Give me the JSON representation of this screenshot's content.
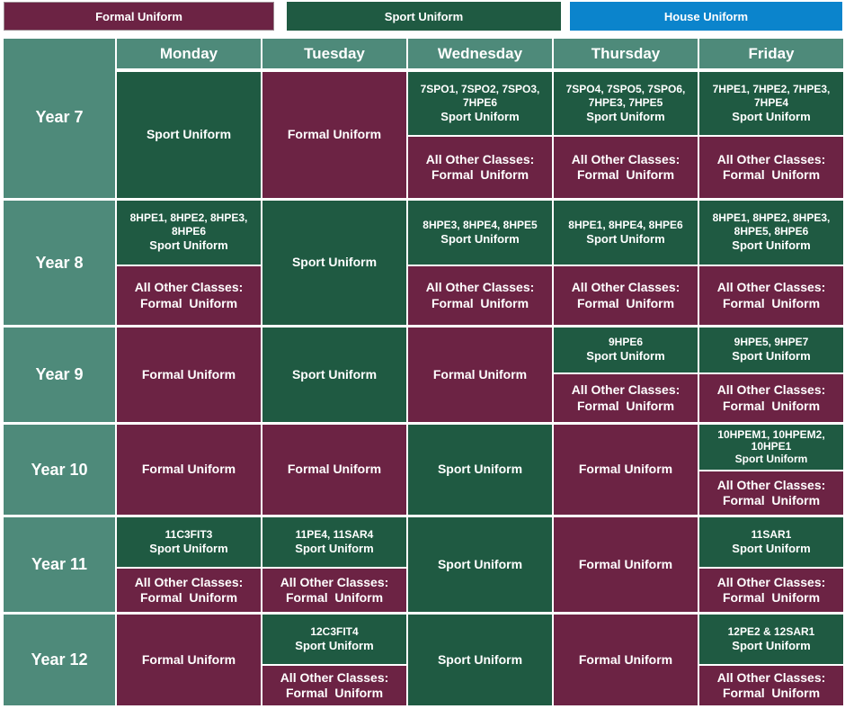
{
  "legend": {
    "formal": "Formal Uniform",
    "sport": "Sport Uniform",
    "house": "House Uniform"
  },
  "days": [
    "Monday",
    "Tuesday",
    "Wednesday",
    "Thursday",
    "Friday"
  ],
  "years": [
    "Year 7",
    "Year 8",
    "Year 9",
    "Year 10",
    "Year 11",
    "Year 12"
  ],
  "labels": {
    "sport": "Sport Uniform",
    "formal": "Formal Uniform",
    "other_line1": "All Other Classes:",
    "other_line2": "Formal  Uniform"
  },
  "classes": {
    "y7_wed": "7SPO1, 7SPO2, 7SPO3, 7HPE6",
    "y7_thu": "7SPO4, 7SPO5, 7SPO6, 7HPE3, 7HPE5",
    "y7_fri": "7HPE1, 7HPE2, 7HPE3, 7HPE4",
    "y8_mon": "8HPE1, 8HPE2, 8HPE3, 8HPE6",
    "y8_wed": "8HPE3, 8HPE4, 8HPE5",
    "y8_thu": "8HPE1, 8HPE4, 8HPE6",
    "y8_fri": "8HPE1, 8HPE2, 8HPE3, 8HPE5, 8HPE6",
    "y9_thu": "9HPE6",
    "y9_fri": "9HPE5, 9HPE7",
    "y10_fri": "10HPEM1, 10HPEM2, 10HPE1",
    "y11_mon": "11C3FIT3",
    "y11_tue": "11PE4, 11SAR4",
    "y11_fri": "11SAR1",
    "y12_tue": "12C3FIT4",
    "y12_fri": "12PE2 & 12SAR1"
  },
  "colors": {
    "formal": "#6c2344",
    "sport": "#1f5a42",
    "house": "#0b84cc",
    "header": "#4e8a7a"
  }
}
